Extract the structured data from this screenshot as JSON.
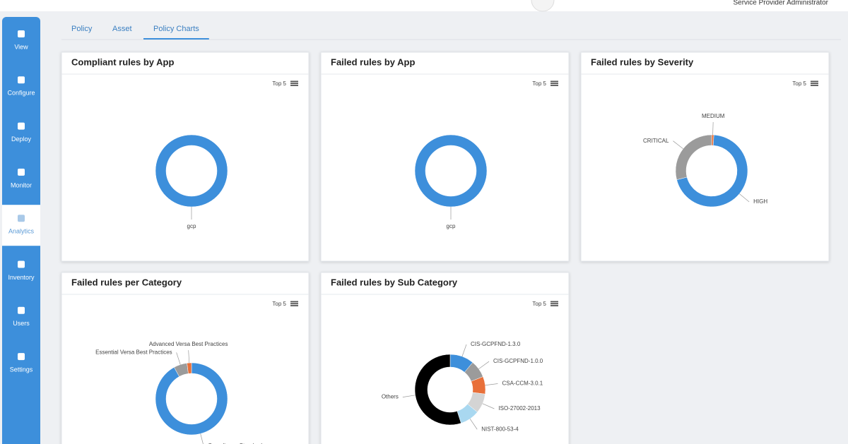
{
  "header": {
    "user_role": "Service Provider Administrator"
  },
  "sidebar": {
    "items": [
      "View",
      "Configure",
      "Deploy",
      "Monitor",
      "Analytics",
      "Inventory",
      "Users",
      "Settings"
    ],
    "active": 4
  },
  "tabs": {
    "items": [
      "Policy",
      "Asset",
      "Policy Charts"
    ],
    "active": 2
  },
  "chart_data": [
    {
      "type": "pie",
      "title": "Compliant rules by App",
      "menu_label": "Top 5",
      "categories": [
        "gcp"
      ],
      "values": [
        100
      ],
      "colors": [
        "#3d8fdb"
      ]
    },
    {
      "type": "pie",
      "title": "Failed rules by App",
      "menu_label": "Top 5",
      "categories": [
        "gcp"
      ],
      "values": [
        100
      ],
      "colors": [
        "#3d8fdb"
      ]
    },
    {
      "type": "pie",
      "title": "Failed rules by Severity",
      "menu_label": "Top 5",
      "categories": [
        "MEDIUM",
        "HIGH",
        "CRITICAL"
      ],
      "values": [
        1,
        70,
        29
      ],
      "colors": [
        "#e8703a",
        "#3d8fdb",
        "#9b9b9b"
      ]
    },
    {
      "type": "pie",
      "title": "Failed rules per Category",
      "menu_label": "Top 5",
      "categories": [
        "Compliance Standards",
        "Essential Versa Best Practices",
        "Advanced Versa Best Practices"
      ],
      "values": [
        92,
        6,
        2
      ],
      "colors": [
        "#3d8fdb",
        "#9b9b9b",
        "#e8703a"
      ]
    },
    {
      "type": "pie",
      "title": "Failed rules by Sub Category",
      "menu_label": "Top 5",
      "categories": [
        "CIS-GCPFND-1.3.0",
        "CIS-GCPFND-1.0.0",
        "CSA-CCM-3.0.1",
        "ISO-27002-2013",
        "NIST-800-53-4",
        "Others"
      ],
      "values": [
        11,
        8,
        8,
        9,
        9,
        55
      ],
      "colors": [
        "#3d8fdb",
        "#9b9b9b",
        "#e8703a",
        "#d4d4d4",
        "#a9d8f0",
        "#000000"
      ]
    }
  ]
}
